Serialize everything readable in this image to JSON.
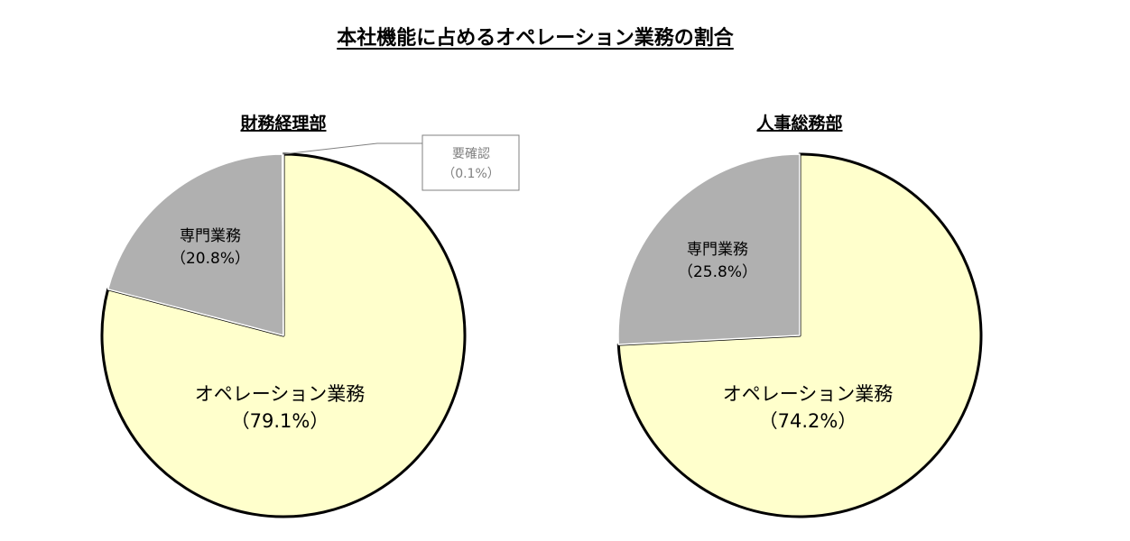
{
  "title": "本社機能に占めるオペレーション業務の割合",
  "colors": {
    "operation": "#FFFFCC",
    "specialist": "#B0B0B0",
    "outline": "#000000",
    "callout": "#808080"
  },
  "chart_data": [
    {
      "type": "pie",
      "title": "財務経理部",
      "slices": [
        {
          "label": "オペレーション業務",
          "pct_label": "（79.1%）",
          "value": 79.1,
          "color": "#FFFFCC"
        },
        {
          "label": "専門業務",
          "pct_label": "（20.8%）",
          "value": 20.8,
          "color": "#B0B0B0"
        },
        {
          "label": "要確認",
          "pct_label": "（0.1%）",
          "value": 0.1,
          "color": "#B0B0B0"
        }
      ]
    },
    {
      "type": "pie",
      "title": "人事総務部",
      "slices": [
        {
          "label": "オペレーション業務",
          "pct_label": "（74.2%）",
          "value": 74.2,
          "color": "#FFFFCC"
        },
        {
          "label": "専門業務",
          "pct_label": "（25.8%）",
          "value": 25.8,
          "color": "#B0B0B0"
        }
      ]
    }
  ]
}
